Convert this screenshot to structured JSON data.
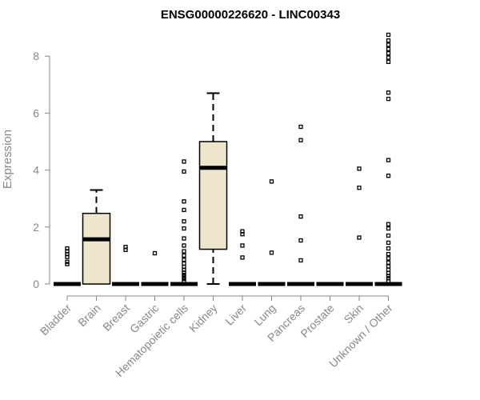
{
  "chart_data": {
    "type": "boxplot",
    "title": "ENSG00000226620 - LINC00343",
    "ylabel": "Expression",
    "xlabel": "",
    "ylim": [
      0,
      8.75
    ],
    "yticks": [
      0,
      2,
      4,
      6,
      8
    ],
    "box_fill": "#ede6cc",
    "categories": [
      "Bladder",
      "Brain",
      "Breast",
      "Gastric",
      "Hematopoietic cells",
      "Kidney",
      "Liver",
      "Lung",
      "Pancreas",
      "Prostate",
      "Skin",
      "Unknown / Other"
    ],
    "series": [
      {
        "category": "Bladder",
        "min": 0,
        "q1": 0,
        "median": 0,
        "q3": 0,
        "max": 0,
        "outliers": [
          0.7,
          0.78,
          0.95,
          1.05,
          1.15,
          1.25
        ]
      },
      {
        "category": "Brain",
        "min": 0,
        "q1": 0,
        "median": 1.57,
        "q3": 2.48,
        "max": 3.3,
        "outliers": []
      },
      {
        "category": "Breast",
        "min": 0,
        "q1": 0,
        "median": 0,
        "q3": 0,
        "max": 0,
        "outliers": [
          1.2,
          1.3
        ]
      },
      {
        "category": "Gastric",
        "min": 0,
        "q1": 0,
        "median": 0,
        "q3": 0,
        "max": 0,
        "outliers": [
          1.08
        ]
      },
      {
        "category": "Hematopoietic cells",
        "min": 0,
        "q1": 0,
        "median": 0,
        "q3": 0,
        "max": 0,
        "outliers": [
          0.1,
          0.18,
          0.25,
          0.32,
          0.4,
          0.5,
          0.6,
          0.72,
          0.85,
          1.0,
          1.15,
          1.35,
          1.6,
          1.95,
          2.2,
          2.6,
          2.9,
          3.95,
          4.3
        ]
      },
      {
        "category": "Kidney",
        "min": 0,
        "q1": 1.22,
        "median": 4.08,
        "q3": 5.0,
        "max": 6.7,
        "outliers": []
      },
      {
        "category": "Liver",
        "min": 0,
        "q1": 0,
        "median": 0,
        "q3": 0,
        "max": 0,
        "outliers": [
          0.93,
          1.35,
          1.75,
          1.85
        ]
      },
      {
        "category": "Lung",
        "min": 0,
        "q1": 0,
        "median": 0,
        "q3": 0,
        "max": 0,
        "outliers": [
          1.1,
          3.6
        ]
      },
      {
        "category": "Pancreas",
        "min": 0,
        "q1": 0,
        "median": 0,
        "q3": 0,
        "max": 0,
        "outliers": [
          0.83,
          1.53,
          2.37,
          5.05,
          5.52
        ]
      },
      {
        "category": "Prostate",
        "min": 0,
        "q1": 0,
        "median": 0,
        "q3": 0,
        "max": 0,
        "outliers": []
      },
      {
        "category": "Skin",
        "min": 0,
        "q1": 0,
        "median": 0,
        "q3": 0,
        "max": 0,
        "outliers": [
          1.63,
          3.38,
          4.05
        ]
      },
      {
        "category": "Unknown / Other",
        "min": 0,
        "q1": 0,
        "median": 0,
        "q3": 0,
        "max": 0,
        "outliers": [
          0.1,
          0.2,
          0.28,
          0.38,
          0.5,
          0.62,
          0.75,
          0.9,
          1.05,
          1.25,
          1.45,
          1.7,
          1.95,
          2.1,
          3.8,
          4.35,
          6.5,
          6.72,
          7.8,
          7.95,
          8.1,
          8.25,
          8.4,
          8.55,
          8.75
        ]
      }
    ]
  }
}
